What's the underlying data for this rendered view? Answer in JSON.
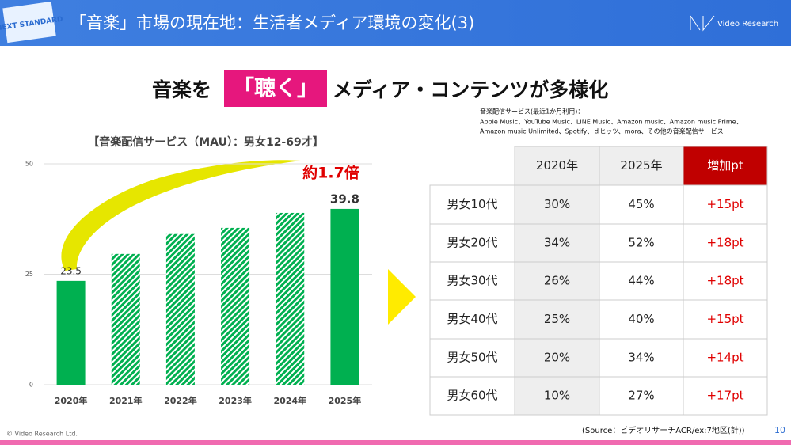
{
  "header": {
    "title": "「音楽」市場の現在地：生活者メディア環境の変化(3)",
    "badge": "NEXT STANDARD",
    "brand": "Video Research"
  },
  "headline": {
    "before": "音楽を",
    "highlight": "「聴く」",
    "after": "メディア・コンテンツが多様化"
  },
  "note": [
    "音楽配信サービス(最近1か月利用)：",
    "Apple Music、YouTube Music、LINE Music、Amazon music、Amazon music Prime、",
    "Amazon music Unlimited、Spotify、ｄヒッツ、mora、その他の音楽配信サービス"
  ],
  "chart_data": {
    "type": "bar",
    "title": "【音楽配信サービス（MAU）：男女12-69才】",
    "categories": [
      "2020年",
      "2021年",
      "2022年",
      "2023年",
      "2024年",
      "2025年"
    ],
    "values": [
      23.5,
      29.6,
      34.1,
      35.5,
      38.9,
      39.8
    ],
    "value_labels": [
      "23.5",
      null,
      null,
      null,
      null,
      "39.8"
    ],
    "styles": [
      "solid",
      "hatched",
      "hatched",
      "hatched",
      "hatched",
      "solid"
    ],
    "color": "#00b050",
    "ylim": [
      0,
      50
    ],
    "yticks": [
      0,
      25,
      50
    ],
    "grid": true,
    "annotation": "約1.7倍"
  },
  "table": {
    "columns": [
      "2020年",
      "2025年",
      "増加pt"
    ],
    "rows": [
      [
        "男女10代",
        "30%",
        "45%",
        "+15pt"
      ],
      [
        "男女20代",
        "34%",
        "52%",
        "+18pt"
      ],
      [
        "男女30代",
        "26%",
        "44%",
        "+18pt"
      ],
      [
        "男女40代",
        "25%",
        "40%",
        "+15pt"
      ],
      [
        "男女50代",
        "20%",
        "34%",
        "+14pt"
      ],
      [
        "男女60代",
        "10%",
        "27%",
        "+17pt"
      ]
    ]
  },
  "footer": {
    "copyright": "© Video Research Ltd.",
    "source": "(Source：ビデオリサーチACR/ex:7地区(計))",
    "page": "10"
  }
}
